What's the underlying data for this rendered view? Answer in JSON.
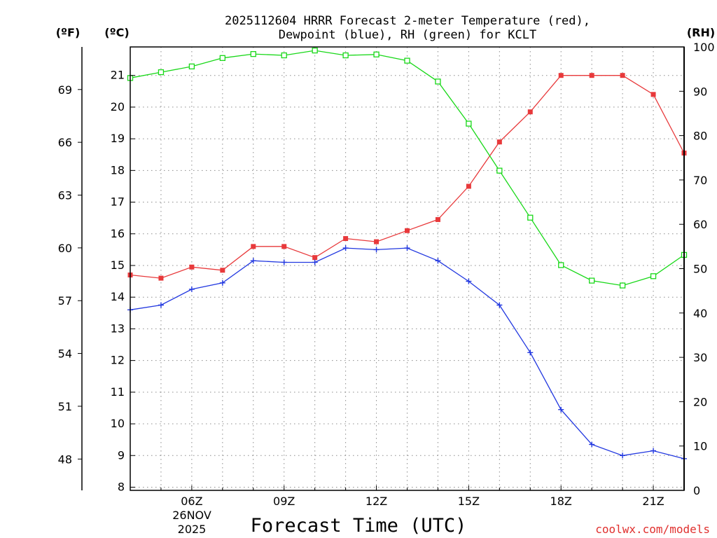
{
  "chart_data": {
    "type": "line",
    "title": "2025112604 HRRR Forecast 2-meter Temperature (red),",
    "subtitle": "Dewpoint (blue), RH (green) for KCLT",
    "xlabel": "Forecast Time (UTC)",
    "credit": "coolwx.com/models",
    "units": {
      "fahrenheit": "(ºF)",
      "celsius": "(ºC)",
      "rh": "(RH)"
    },
    "date_label": {
      "day": "26NOV",
      "year": "2025"
    },
    "x": [
      4,
      5,
      6,
      7,
      8,
      9,
      10,
      11,
      12,
      13,
      14,
      15,
      16,
      17,
      18,
      19,
      20,
      21,
      22
    ],
    "xlim": [
      4,
      22
    ],
    "xticks": [
      {
        "value": 6,
        "label": "06Z"
      },
      {
        "value": 9,
        "label": "09Z"
      },
      {
        "value": 12,
        "label": "12Z"
      },
      {
        "value": 15,
        "label": "15Z"
      },
      {
        "value": 18,
        "label": "18Z"
      },
      {
        "value": 21,
        "label": "21Z"
      }
    ],
    "ylim_c": [
      7.9,
      21.9
    ],
    "ylim_rh": [
      0,
      100
    ],
    "yticks_c": [
      8,
      9,
      10,
      11,
      12,
      13,
      14,
      15,
      16,
      17,
      18,
      19,
      20,
      21
    ],
    "yticks_f": [
      48,
      51,
      54,
      57,
      60,
      63,
      66,
      69
    ],
    "yticks_rh": [
      0,
      10,
      20,
      30,
      40,
      50,
      60,
      70,
      80,
      90,
      100
    ],
    "series": [
      {
        "name": "Temperature",
        "axis": "c",
        "color": "#e8393b",
        "marker": "filled-square",
        "values": [
          14.7,
          14.6,
          14.95,
          14.85,
          15.6,
          15.6,
          15.25,
          15.85,
          15.75,
          16.1,
          16.45,
          17.5,
          18.9,
          19.85,
          21.0,
          21.0,
          21.0,
          20.4,
          18.55
        ]
      },
      {
        "name": "Dewpoint",
        "axis": "c",
        "color": "#2238e0",
        "marker": "plus",
        "values": [
          13.6,
          13.75,
          14.25,
          14.45,
          15.15,
          15.1,
          15.1,
          15.55,
          15.5,
          15.55,
          15.15,
          14.5,
          13.75,
          12.25,
          10.45,
          9.35,
          9.0,
          9.15,
          8.9
        ]
      },
      {
        "name": "RH",
        "axis": "rh",
        "color": "#18d818",
        "marker": "open-square",
        "values": [
          93,
          94.3,
          95.6,
          97.5,
          98.4,
          98.1,
          99.2,
          98.1,
          98.3,
          96.9,
          92.2,
          82.7,
          72.1,
          61.5,
          50.8,
          47.3,
          46.2,
          48.3,
          53.1
        ]
      }
    ]
  }
}
